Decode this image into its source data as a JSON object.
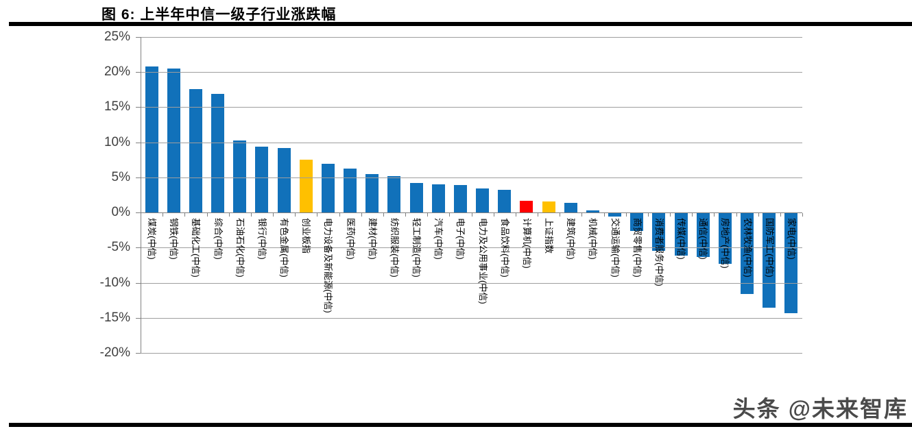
{
  "figure": {
    "title": "图 6:  上半年中信一级子行业涨跌幅",
    "watermark": "头条 @未来智库"
  },
  "colors": {
    "bar_default": "#1171ba",
    "bar_gold": "#ffc000",
    "bar_red": "#ff0000",
    "gridline": "#9e9e9e",
    "axis": "#808080",
    "ytick_label": "#3f3f3f",
    "category_label": "#000000",
    "rule": "#000000",
    "watermark": "#4a4a4a"
  },
  "chart_data": {
    "type": "bar",
    "title": "上半年中信一级子行业涨跌幅",
    "xlabel": "",
    "ylabel": "",
    "ylim": [
      -20,
      25
    ],
    "grid": true,
    "legend": "none",
    "yticks": [
      25,
      20,
      15,
      10,
      5,
      0,
      -5,
      -10,
      -15,
      -20
    ],
    "ytick_labels": [
      "25%",
      "20%",
      "15%",
      "10%",
      "5%",
      "0%",
      "-5%",
      "-10%",
      "-15%",
      "-20%"
    ],
    "categories": [
      "煤炭(中信)",
      "钢铁(中信)",
      "基础化工(中信)",
      "综合(中信)",
      "石油石化(中信)",
      "银行(中信)",
      "有色金属(中信)",
      "创业板指",
      "电力设备及新能源(中信)",
      "医药(中信)",
      "建材(中信)",
      "纺织服装(中信)",
      "轻工制造(中信)",
      "汽车(中信)",
      "电子(中信)",
      "电力及公用事业(中信)",
      "食品饮料(中信)",
      "计算机(中信)",
      "上证指数",
      "建筑(中信)",
      "机械(中信)",
      "交通运输(中信)",
      "商贸零售(中信)",
      "消费者服务(中信)",
      "传媒(中信)",
      "通信(中信)",
      "房地产(中信)",
      "农林牧渔(中信)",
      "国防军工(中信)",
      "家电(中信)"
    ],
    "values": [
      20.8,
      20.5,
      17.6,
      16.9,
      10.2,
      9.4,
      9.2,
      7.5,
      6.9,
      6.2,
      5.5,
      5.2,
      4.2,
      4.0,
      3.9,
      3.4,
      3.2,
      1.7,
      1.6,
      1.4,
      0.3,
      -0.5,
      -2.5,
      -5.4,
      -6.0,
      -6.2,
      -7.2,
      -11.5,
      -13.5,
      -14.2
    ],
    "bar_colors": [
      "default",
      "default",
      "default",
      "default",
      "default",
      "default",
      "default",
      "gold",
      "default",
      "default",
      "default",
      "default",
      "default",
      "default",
      "default",
      "default",
      "default",
      "red",
      "gold",
      "default",
      "default",
      "default",
      "default",
      "default",
      "default",
      "default",
      "default",
      "default",
      "default",
      "default"
    ]
  }
}
